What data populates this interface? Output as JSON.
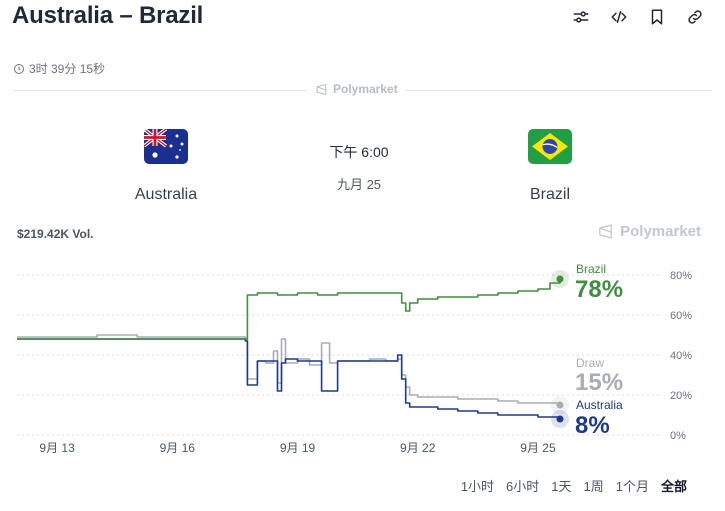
{
  "header": {
    "title": "Australia – Brazil",
    "toolbar": [
      {
        "icon": "sliders-icon"
      },
      {
        "icon": "code-icon"
      },
      {
        "icon": "bookmark-icon"
      },
      {
        "icon": "link-icon"
      }
    ]
  },
  "countdown": {
    "text": "3时 39分 15秒",
    "icon": "clock-icon"
  },
  "brand": "Polymarket",
  "match": {
    "home": {
      "name": "Australia",
      "flag": "australia-flag"
    },
    "away": {
      "name": "Brazil",
      "flag": "brazil-flag"
    },
    "time": "下午 6:00",
    "date": "九月 25"
  },
  "volume": "$219.42K Vol.",
  "ranges": {
    "items": [
      "1小时",
      "6小时",
      "1天",
      "1周",
      "1个月",
      "全部"
    ],
    "selected": "全部"
  },
  "chart_data": {
    "type": "line",
    "x_ticks": [
      "9月 13",
      "9月 16",
      "9月 19",
      "9月 22",
      "9月 25"
    ],
    "x_tick_pos": [
      0,
      3,
      6,
      9,
      12
    ],
    "x_range": [
      -1,
      12.6
    ],
    "y_ticks": [
      "80%",
      "60%",
      "40%",
      "20%",
      "0%"
    ],
    "ylim": [
      0,
      80
    ],
    "grid": true,
    "series": [
      {
        "name": "Draw",
        "color": "#a9adb3",
        "current": "15%",
        "x": [
          -1,
          0,
          1,
          2,
          3,
          4,
          4.7,
          4.75,
          5.0,
          5.2,
          5.4,
          5.5,
          5.6,
          5.7,
          6.0,
          6.3,
          6.6,
          6.8,
          7.0,
          7.4,
          7.8,
          8.0,
          8.2,
          8.5,
          8.6,
          8.7,
          8.8,
          9.0,
          9.5,
          10,
          10.5,
          11,
          11.5,
          12,
          12.55
        ],
        "values": [
          49,
          49,
          50,
          49,
          49,
          49,
          48,
          28,
          37,
          36,
          42,
          26,
          48,
          36,
          38,
          35,
          46,
          36,
          37,
          37,
          38,
          38,
          37,
          38,
          30,
          24,
          20,
          19,
          19,
          18,
          18,
          17,
          16,
          16,
          15
        ]
      },
      {
        "name": "Australia",
        "color": "#1e3a8a",
        "current": "8%",
        "x": [
          -1,
          0,
          1,
          2,
          3,
          4,
          4.7,
          4.75,
          5.0,
          5.2,
          5.4,
          5.5,
          5.6,
          5.7,
          6.0,
          6.3,
          6.6,
          7.0,
          7.5,
          8.0,
          8.3,
          8.5,
          8.6,
          8.7,
          8.8,
          9.0,
          9.5,
          10,
          10.5,
          11,
          11.5,
          12,
          12.55
        ],
        "values": [
          48,
          48,
          48,
          48,
          48,
          48,
          47,
          25,
          37,
          37,
          37,
          22,
          36,
          38,
          37,
          37,
          22,
          37,
          37,
          37,
          37,
          40,
          28,
          16,
          14,
          14,
          13,
          12,
          11,
          10,
          10,
          9,
          8
        ]
      },
      {
        "name": "Brazil",
        "color": "#3f8f3f",
        "current": "78%",
        "x": [
          -1,
          0,
          1,
          2,
          3,
          4,
          4.7,
          4.75,
          5.0,
          5.5,
          6.0,
          6.5,
          7.0,
          7.5,
          8.0,
          8.5,
          8.6,
          8.7,
          8.8,
          9.0,
          9.5,
          10,
          10.5,
          11,
          11.5,
          12,
          12.3,
          12.55
        ],
        "values": [
          48,
          48,
          48,
          48,
          48,
          48,
          48,
          70,
          71,
          70,
          71,
          70,
          71,
          71,
          71,
          71,
          66,
          62,
          66,
          68,
          69,
          69,
          70,
          71,
          72,
          73,
          76,
          78
        ]
      }
    ]
  }
}
